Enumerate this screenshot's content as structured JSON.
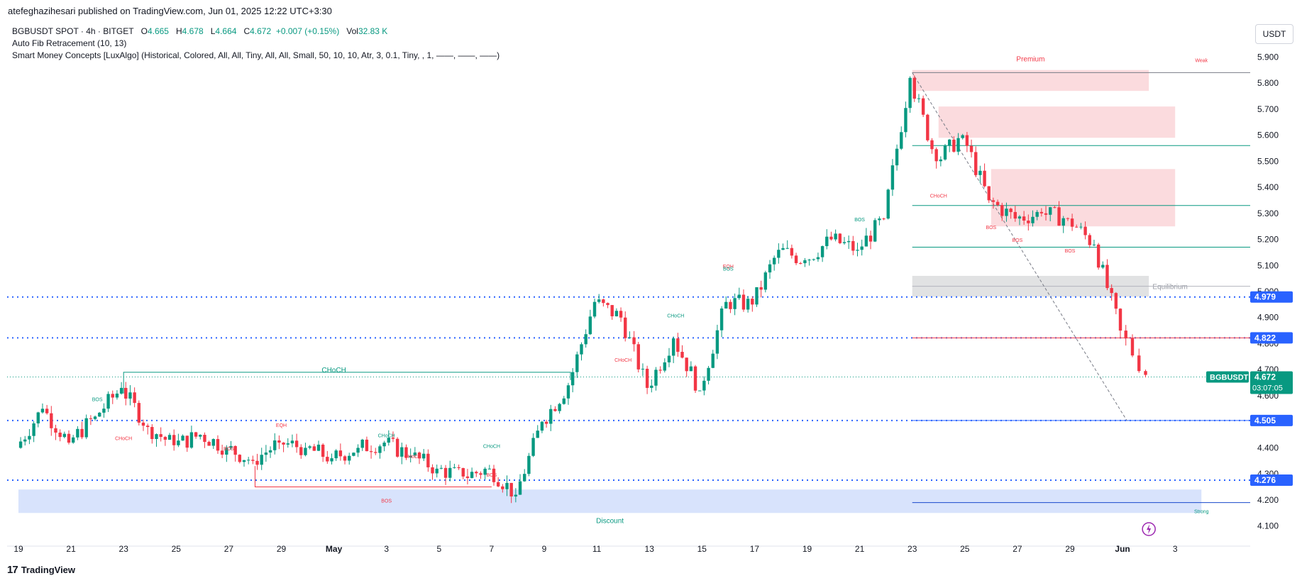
{
  "header": {
    "publisher": "atefeghazihesari published on TradingView.com, Jun 01, 2025 12:22 UTC+3:30",
    "symbol_line": "BGBUSDT SPOT · 4h · BITGET",
    "ohlc": {
      "o_label": "O",
      "o": "4.665",
      "h_label": "H",
      "h": "4.678",
      "l_label": "L",
      "l": "4.664",
      "c_label": "C",
      "c": "4.672",
      "change": "+0.007 (+0.15%)",
      "vol_label": "Vol",
      "vol": "32.83 K"
    },
    "indicator1": "Auto Fib Retracement (10, 13)",
    "indicator2": "Smart Money Concepts [LuxAlgo] (Historical, Colored, All, All, Tiny, All, All, Small, 50, 10, 10, Atr, 3, 0.1, Tiny, , 1, ——, ——, ——)",
    "currency": "USDT"
  },
  "footer": {
    "logo_mark": "17",
    "logo_text": "TradingView"
  },
  "colors": {
    "up": "#089981",
    "down": "#f23645",
    "dotted": "#2962ff",
    "premium": "#f7b7bd",
    "discount": "#b2c8f9",
    "equilibrium": "#c9cacc"
  },
  "chart_data": {
    "type": "candlestick",
    "symbol": "BGBUSDT",
    "ylim": [
      4.05,
      5.95
    ],
    "y_ticks": [
      "5.900",
      "5.800",
      "5.700",
      "5.600",
      "5.500",
      "5.400",
      "5.300",
      "5.200",
      "5.100",
      "5.000",
      "4.900",
      "4.800",
      "4.700",
      "4.600",
      "4.500",
      "4.400",
      "4.300",
      "4.200",
      "4.100"
    ],
    "x_tick_labels": [
      "19",
      "21",
      "23",
      "25",
      "27",
      "29",
      "May",
      "3",
      "5",
      "7",
      "9",
      "11",
      "13",
      "15",
      "17",
      "19",
      "21",
      "23",
      "25",
      "27",
      "29",
      "Jun",
      "3"
    ],
    "date_range": [
      "Apr 19, 2025",
      "Jun 03, 2025"
    ],
    "close_path": [
      [
        "Apr 19",
        4.4
      ],
      [
        "Apr 20",
        4.55
      ],
      [
        "Apr 21",
        4.42
      ],
      [
        "Apr 22",
        4.52
      ],
      [
        "Apr 23",
        4.63
      ],
      [
        "Apr 24",
        4.48
      ],
      [
        "Apr 25",
        4.41
      ],
      [
        "Apr 26",
        4.45
      ],
      [
        "Apr 27",
        4.4
      ],
      [
        "Apr 28",
        4.35
      ],
      [
        "Apr 29",
        4.42
      ],
      [
        "Apr 30",
        4.4
      ],
      [
        "May 01",
        4.36
      ],
      [
        "May 02",
        4.4
      ],
      [
        "May 03",
        4.42
      ],
      [
        "May 04",
        4.37
      ],
      [
        "May 05",
        4.32
      ],
      [
        "May 06",
        4.29
      ],
      [
        "May 07",
        4.32
      ],
      [
        "May 08",
        4.22
      ],
      [
        "May 09",
        4.5
      ],
      [
        "May 10",
        4.64
      ],
      [
        "May 11",
        4.96
      ],
      [
        "May 12",
        4.9
      ],
      [
        "May 13",
        4.63
      ],
      [
        "May 14",
        4.82
      ],
      [
        "May 15",
        4.62
      ],
      [
        "May 16",
        4.96
      ],
      [
        "May 17",
        4.95
      ],
      [
        "May 18",
        5.16
      ],
      [
        "May 19",
        5.12
      ],
      [
        "May 20",
        5.2
      ],
      [
        "May 21",
        5.16
      ],
      [
        "May 22",
        5.28
      ],
      [
        "May 23",
        5.82
      ],
      [
        "May 24",
        5.5
      ],
      [
        "May 25",
        5.6
      ],
      [
        "May 26",
        5.35
      ],
      [
        "May 27",
        5.28
      ],
      [
        "May 28",
        5.3
      ],
      [
        "May 29",
        5.28
      ],
      [
        "May 30",
        5.18
      ],
      [
        "May 31",
        4.85
      ],
      [
        "Jun 01",
        4.68
      ]
    ],
    "last_price": "4.672",
    "countdown": "03:07:05",
    "price_labels": [
      {
        "value": "4.979",
        "y": 4.979,
        "color": "#2962ff"
      },
      {
        "value": "4.822",
        "y": 4.822,
        "color": "#2962ff"
      },
      {
        "value": "4.505",
        "y": 4.505,
        "color": "#2962ff"
      },
      {
        "value": "4.276",
        "y": 4.276,
        "color": "#2962ff"
      }
    ],
    "zones": [
      {
        "kind": "premium",
        "label": "Premium",
        "from": "May 23",
        "to": "Jun 01",
        "y0": 5.77,
        "y1": 5.85
      },
      {
        "kind": "premium",
        "label": "",
        "from": "May 24",
        "to": "Jun 02",
        "y0": 5.59,
        "y1": 5.71
      },
      {
        "kind": "premium",
        "label": "",
        "from": "May 26",
        "to": "Jun 02",
        "y0": 5.25,
        "y1": 5.47
      },
      {
        "kind": "equilibrium",
        "label": "Equilibrium",
        "from": "May 23",
        "to": "Jun 01",
        "y0": 4.98,
        "y1": 5.06
      },
      {
        "kind": "discount",
        "label": "Discount",
        "from": "Apr 19",
        "to": "Jun 03",
        "y0": 4.15,
        "y1": 4.24
      }
    ],
    "structure_labels": [
      {
        "text": "CHoCH",
        "color": "#089981",
        "at": "May 01",
        "y": 4.69
      },
      {
        "text": "BOS",
        "color": "#f23645",
        "at": "May 03",
        "y": 4.19
      },
      {
        "text": "Weak",
        "color": "#f23645",
        "at": "Jun 03",
        "y": 5.88
      },
      {
        "text": "Strong",
        "color": "#089981",
        "at": "Jun 03",
        "y": 4.15
      },
      {
        "text": "BOS",
        "color": "#089981",
        "at": "Apr 22",
        "y": 4.58
      },
      {
        "text": "CHoCH",
        "color": "#f23645",
        "at": "Apr 23",
        "y": 4.43
      },
      {
        "text": "BOS",
        "color": "#f23645",
        "at": "Apr 27",
        "y": 4.39
      },
      {
        "text": "EQH",
        "color": "#f23645",
        "at": "Apr 29",
        "y": 4.48
      },
      {
        "text": "CHoCH",
        "color": "#089981",
        "at": "May 03",
        "y": 4.44
      },
      {
        "text": "CHoCH",
        "color": "#f23645",
        "at": "May 04",
        "y": 4.36
      },
      {
        "text": "BOS",
        "color": "#f23645",
        "at": "May 07",
        "y": 4.29
      },
      {
        "text": "CHoCH",
        "color": "#089981",
        "at": "May 07",
        "y": 4.4
      },
      {
        "text": "CHoCH",
        "color": "#f23645",
        "at": "May 12",
        "y": 4.73
      },
      {
        "text": "CHoCH",
        "color": "#089981",
        "at": "May 14",
        "y": 4.9
      },
      {
        "text": "EQH",
        "color": "#f23645",
        "at": "May 16",
        "y": 5.09
      },
      {
        "text": "BOS",
        "color": "#089981",
        "at": "May 16",
        "y": 5.08
      },
      {
        "text": "BOS",
        "color": "#089981",
        "at": "May 21",
        "y": 5.27
      },
      {
        "text": "CHoCH",
        "color": "#f23645",
        "at": "May 24",
        "y": 5.36
      },
      {
        "text": "BOS",
        "color": "#f23645",
        "at": "May 26",
        "y": 5.24
      },
      {
        "text": "BOS",
        "color": "#f23645",
        "at": "May 27",
        "y": 5.19
      },
      {
        "text": "BOS",
        "color": "#f23645",
        "at": "May 29",
        "y": 5.15
      }
    ],
    "date_marker": "Jun"
  }
}
